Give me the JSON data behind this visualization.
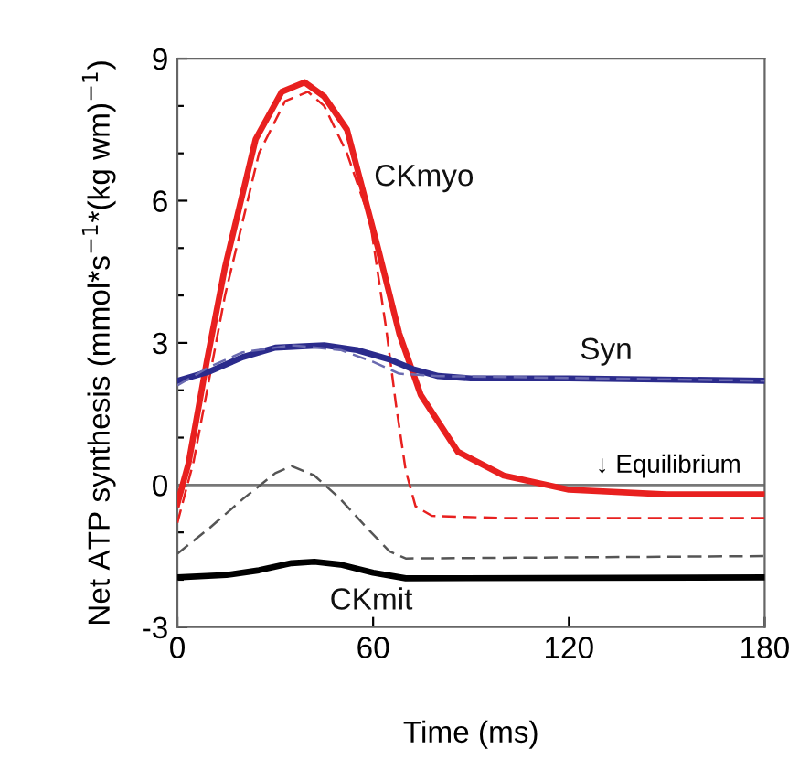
{
  "chart_data": {
    "type": "line",
    "xlabel": "Time (ms)",
    "ylabel": "Net ATP synthesis (mmol*s$^{−1}$*(kg wm)$^{−1}$)",
    "xlim": [
      0,
      180
    ],
    "xticks": [
      0,
      60,
      120,
      180
    ],
    "ylim": [
      -3,
      9
    ],
    "yticks": [
      -3,
      {
        "value": -2,
        "label": null
      },
      {
        "value": -1,
        "label": null
      },
      0,
      {
        "value": 1,
        "label": null
      },
      {
        "value": 2,
        "label": null
      },
      3,
      {
        "value": 4,
        "label": null
      },
      {
        "value": 5,
        "label": null
      },
      6,
      {
        "value": 7,
        "label": null
      },
      {
        "value": 8,
        "label": null
      },
      9
    ],
    "grid": false,
    "legend": false,
    "marker": "none",
    "series": [
      {
        "name": "CKmyo",
        "color": "#e8201f",
        "line_style": "solid",
        "x": [
          0,
          3.4,
          9,
          14.6,
          24,
          32,
          39,
          45,
          52,
          61.5,
          68,
          74.6,
          86,
          100,
          120,
          150,
          180
        ],
        "values": [
          -0.4,
          0.45,
          2.6,
          4.6,
          7.3,
          8.3,
          8.5,
          8.2,
          7.5,
          5.0,
          3.2,
          1.9,
          0.7,
          0.2,
          -0.1,
          -0.2,
          -0.2
        ]
      },
      {
        "color": "#e8201f",
        "line_style": "dashed",
        "x": [
          0,
          5,
          14.6,
          25,
          33,
          40,
          45,
          52,
          59,
          64,
          67,
          70,
          73,
          78,
          100,
          180
        ],
        "values": [
          -0.8,
          0.5,
          4.0,
          7.0,
          8.1,
          8.3,
          8.0,
          7.0,
          5.6,
          3.3,
          1.7,
          0.3,
          -0.45,
          -0.65,
          -0.7,
          -0.7
        ]
      },
      {
        "name": "Syn",
        "color": "#2b2b8c",
        "line_style": "solid",
        "x": [
          0,
          10,
          20,
          30,
          45,
          55,
          65,
          72,
          80,
          90,
          120,
          180
        ],
        "values": [
          2.2,
          2.4,
          2.7,
          2.9,
          2.95,
          2.85,
          2.65,
          2.45,
          2.3,
          2.25,
          2.25,
          2.2
        ]
      },
      {
        "color": "#6a6ab0",
        "line_style": "dashed",
        "x": [
          0,
          10,
          20,
          35,
          50,
          60,
          68,
          80,
          180
        ],
        "values": [
          2.1,
          2.5,
          2.8,
          2.95,
          2.85,
          2.6,
          2.35,
          2.3,
          2.2
        ]
      },
      {
        "color": "#555555",
        "line_style": "dashed",
        "x": [
          0,
          10,
          20,
          30,
          35,
          42,
          50,
          58,
          65,
          70,
          180
        ],
        "values": [
          -1.45,
          -0.9,
          -0.3,
          0.25,
          0.4,
          0.2,
          -0.3,
          -0.9,
          -1.4,
          -1.55,
          -1.5
        ]
      },
      {
        "name": "CKmit",
        "color": "#000000",
        "line_style": "solid",
        "x": [
          0,
          15,
          25,
          35,
          42,
          50,
          60,
          70,
          180
        ],
        "values": [
          -1.95,
          -1.9,
          -1.8,
          -1.65,
          -1.62,
          -1.68,
          -1.85,
          -1.97,
          -1.95
        ]
      }
    ],
    "ref_lines": [
      {
        "axis": "y",
        "value": 0,
        "label": "↓ Equilibrium",
        "color": "#777777"
      }
    ]
  }
}
